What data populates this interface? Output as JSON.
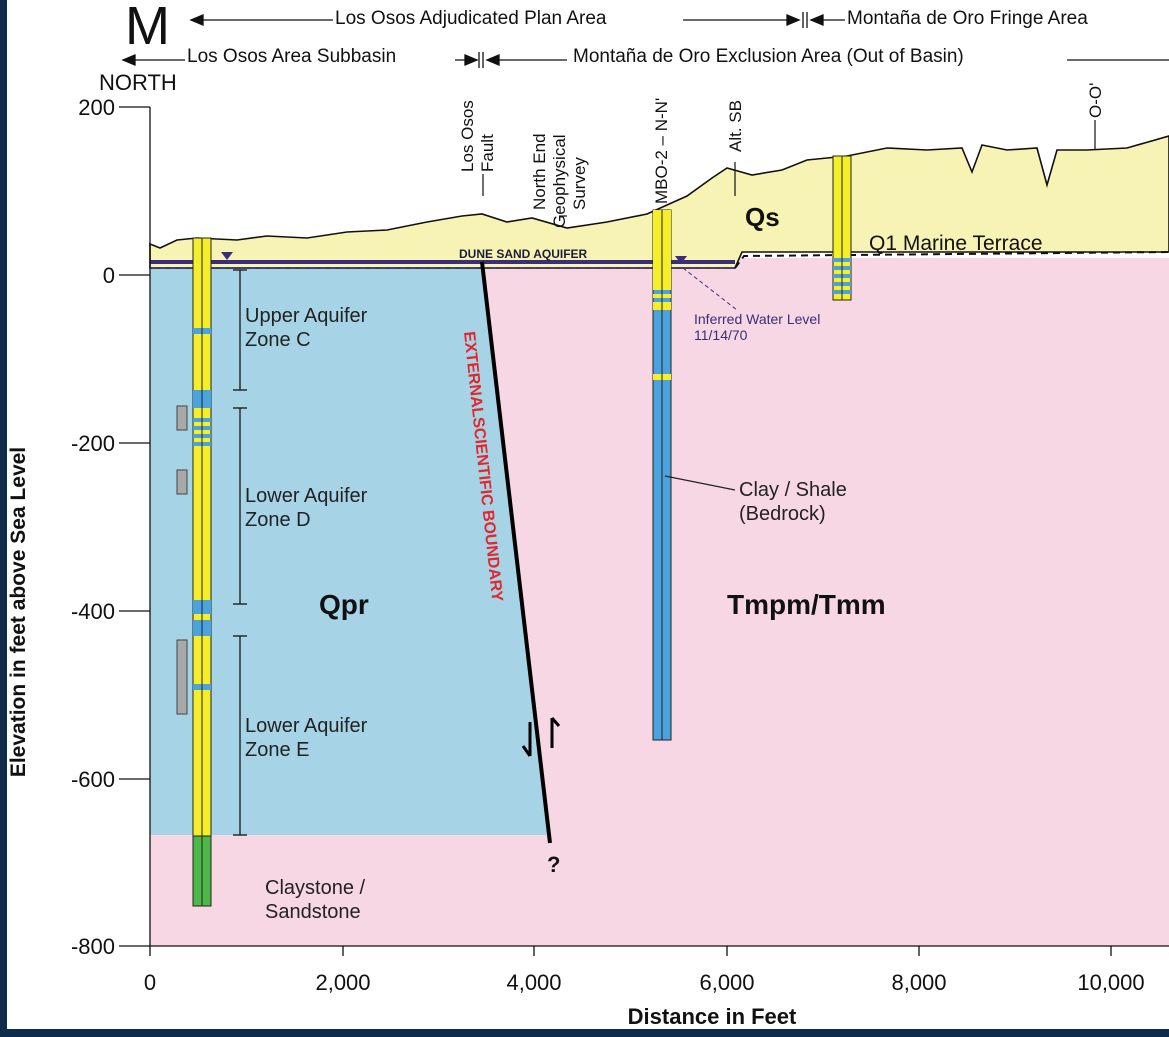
{
  "header": {
    "letter": "M",
    "direction": "NORTH",
    "adjudicated_area": "Los Osos Adjudicated Plan Area",
    "fringe_area": "Montaña de Oro Fringe Area",
    "subbasin": "Los Osos Area Subbasin",
    "exclusion_area": "Montaña de Oro Exclusion Area (Out of Basin)"
  },
  "axes": {
    "ylabel": "Elevation in feet above Sea Level",
    "xlabel": "Distance in Feet",
    "y_ticks": [
      "200",
      "0",
      "-200",
      "-400",
      "-600",
      "-800"
    ],
    "x_ticks": [
      "0",
      "2,000",
      "4,000",
      "6,000",
      "8,000",
      "10,000"
    ]
  },
  "top_labels": {
    "los_osos_fault_1": "Los Osos",
    "los_osos_fault_2": "Fault",
    "geo_1": "North End",
    "geo_2": "Geophysical",
    "geo_3": "Survey",
    "mbo": "MBO-2 – N-N'",
    "alt_sb": "Alt. SB",
    "oo": "O-O'"
  },
  "units": {
    "qs": "Qs",
    "q1": "Q1 Marine Terrace",
    "dune": "DUNE SAND AQUIFER",
    "qpr": "Qpr",
    "tmpm": "Tmpm/Tmm",
    "clay_1": "Clay / Shale",
    "clay_2": "(Bedrock)",
    "claystone_1": "Claystone /",
    "claystone_2": "Sandstone"
  },
  "zones": {
    "c_1": "Upper Aquifer",
    "c_2": "Zone C",
    "d_1": "Lower Aquifer",
    "d_2": "Zone D",
    "e_1": "Lower Aquifer",
    "e_2": "Zone E"
  },
  "annotations": {
    "water_level_1": "Inferred Water Level",
    "water_level_2": "11/14/70",
    "boundary": "EXTERNALSCIENTIFIC BOUNDARY",
    "unknown": "?"
  },
  "colors": {
    "qpr": "#a6d4e6",
    "bedrock": "#f7d7e4",
    "qs": "#f7f3b4",
    "well_yellow": "#f5ef2a",
    "well_blue": "#4aa3dc",
    "well_green": "#4db848",
    "water_line": "#3a2d7a",
    "boundary_text": "#e3262b",
    "frame": "#0f2b4c"
  }
}
